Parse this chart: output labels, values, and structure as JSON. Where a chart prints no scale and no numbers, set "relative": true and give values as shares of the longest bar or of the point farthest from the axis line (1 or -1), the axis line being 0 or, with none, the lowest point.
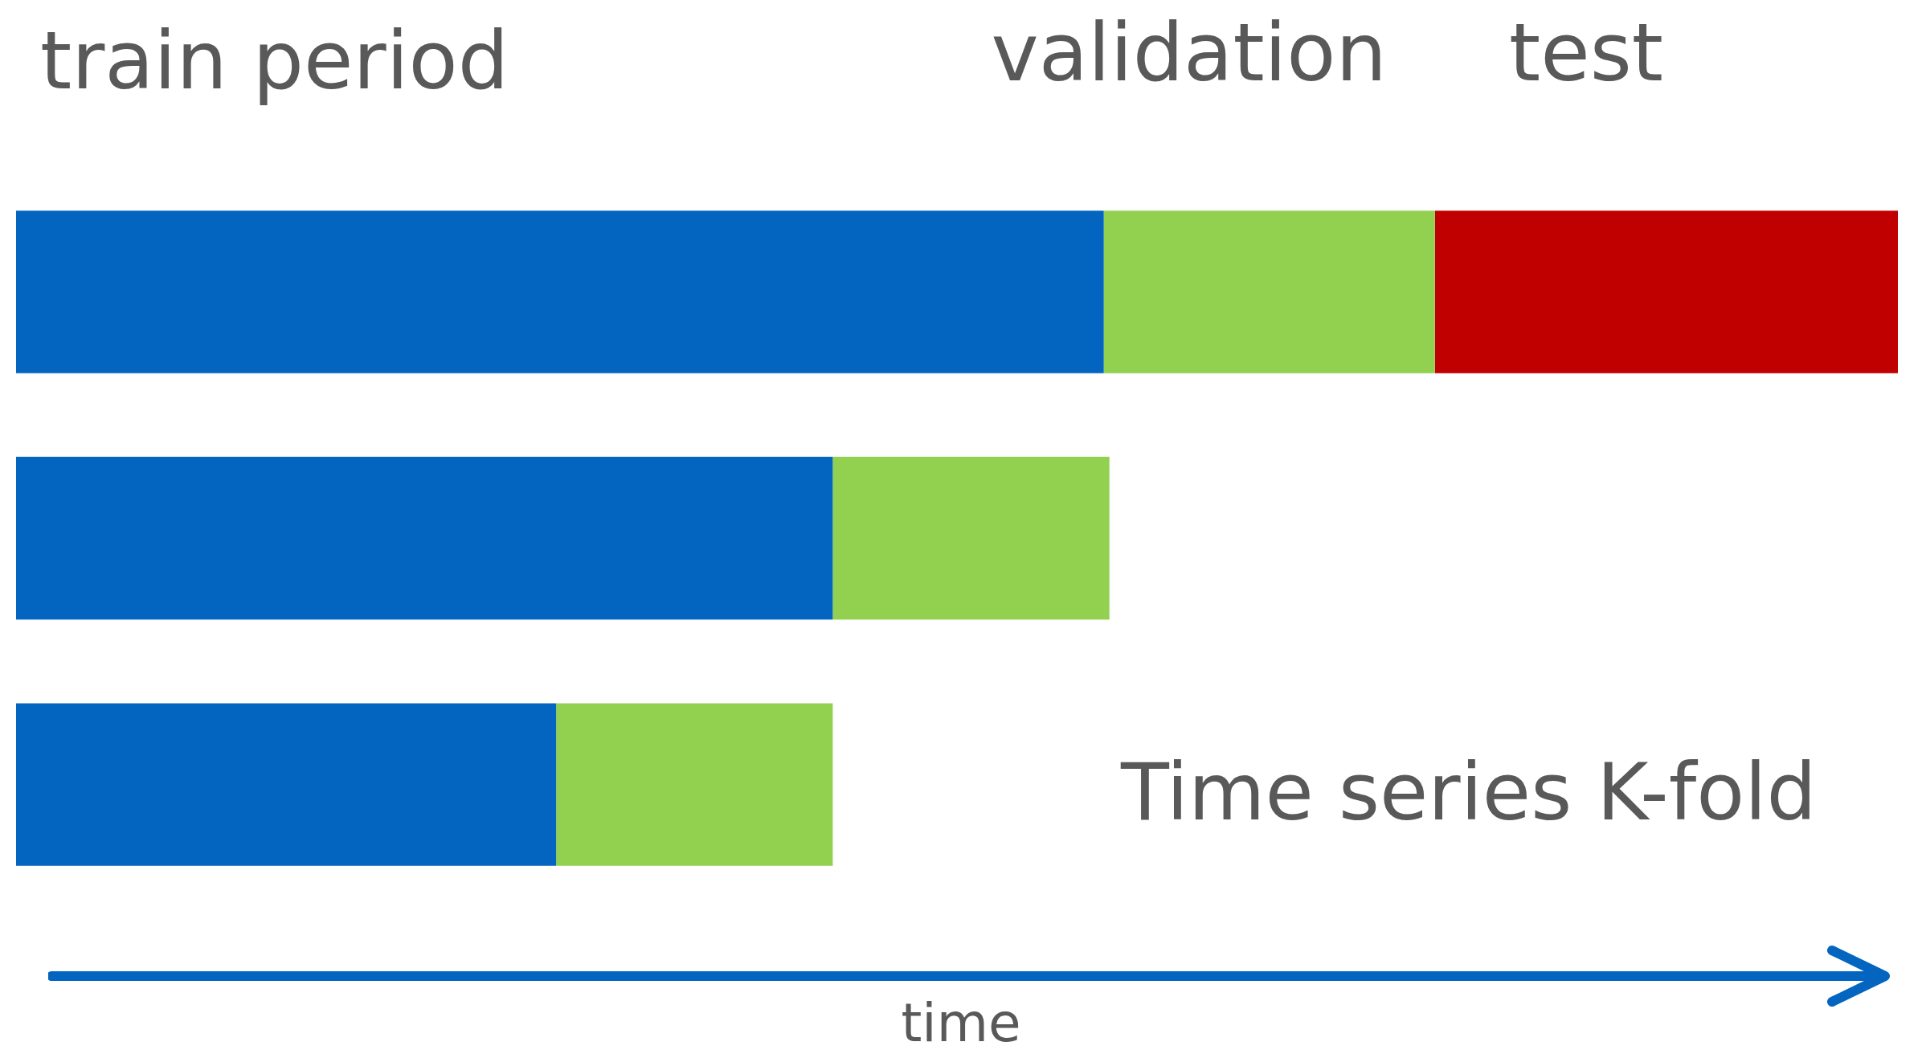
{
  "chart_data": {
    "type": "bar",
    "orientation": "horizontal",
    "stacked": true,
    "relative": true,
    "legend": false,
    "xlabel": "time",
    "categories": [
      null,
      null,
      null
    ],
    "series": [
      {
        "name": "train period",
        "color": "#0365c0",
        "values": [
          0.578,
          0.434,
          0.287
        ]
      },
      {
        "name": "validation",
        "color": "#92d050",
        "values": [
          0.176,
          0.147,
          0.147
        ]
      },
      {
        "name": "test",
        "color": "#c00000",
        "values": [
          0.246,
          null,
          null
        ]
      }
    ],
    "annotations": [
      "Time series K-fold"
    ]
  }
}
